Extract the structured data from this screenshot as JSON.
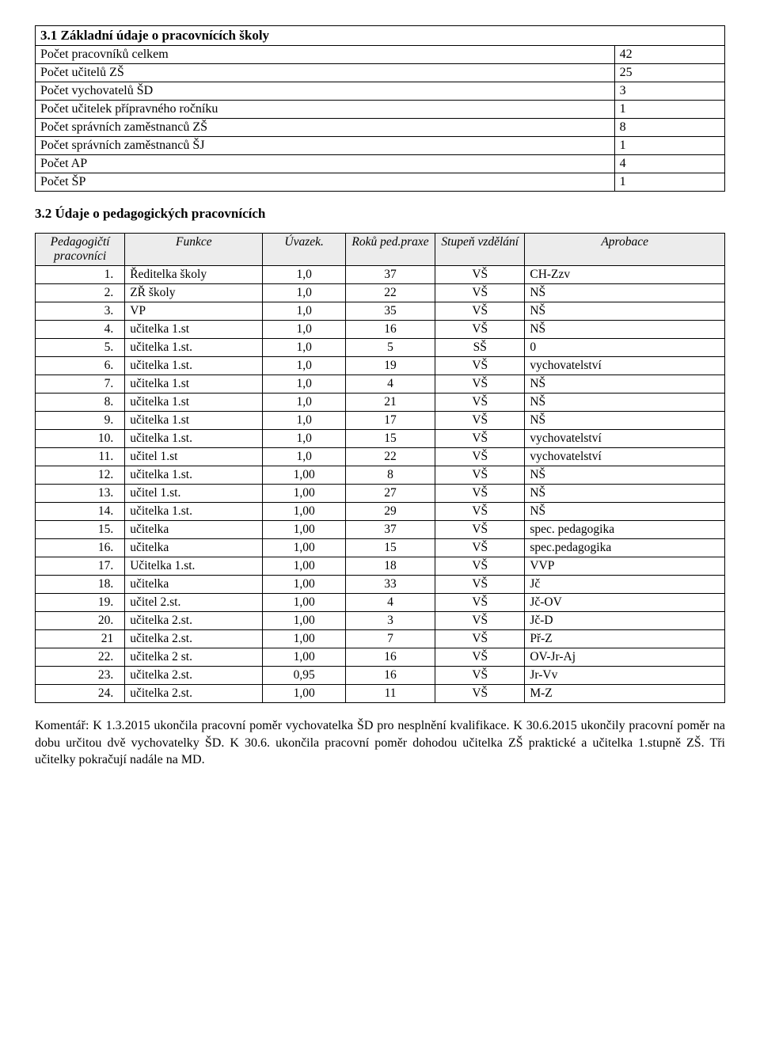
{
  "section1": {
    "title": "3.1 Základní údaje o pracovnících školy",
    "rows": [
      {
        "label": "Počet pracovníků celkem",
        "value": "42"
      },
      {
        "label": "Počet učitelů ZŠ",
        "value": "25"
      },
      {
        "label": "Počet vychovatelů ŠD",
        "value": "3"
      },
      {
        "label": "Počet učitelek přípravného ročníku",
        "value": "1"
      },
      {
        "label": "Počet správních zaměstnanců ZŠ",
        "value": "8"
      },
      {
        "label": "Počet správních zaměstnanců ŠJ",
        "value": "1"
      },
      {
        "label": "Počet AP",
        "value": "4"
      },
      {
        "label": "Počet ŠP",
        "value": "1"
      }
    ]
  },
  "section2": {
    "title": "3.2 Údaje o pedagogických pracovnících",
    "headers": {
      "c1": "Pedagogičtí pracovníci",
      "c2": "Funkce",
      "c3": "Úvazek.",
      "c4": "Roků ped.praxe",
      "c5": "Stupeň vzdělání",
      "c6": "Aprobace"
    },
    "rows": [
      {
        "n": "1.",
        "f": "Ředitelka školy",
        "u": "1,0",
        "r": "37",
        "s": "VŠ",
        "a": "CH-Zzv"
      },
      {
        "n": "2.",
        "f": "ZŘ školy",
        "u": "1,0",
        "r": "22",
        "s": "VŠ",
        "a": "NŠ"
      },
      {
        "n": "3.",
        "f": "VP",
        "u": "1,0",
        "r": "35",
        "s": "VŠ",
        "a": "NŠ"
      },
      {
        "n": "4.",
        "f": "učitelka 1.st",
        "u": "1,0",
        "r": "16",
        "s": "VŠ",
        "a": "NŠ"
      },
      {
        "n": "5.",
        "f": "učitelka 1.st.",
        "u": "1,0",
        "r": "5",
        "s": "SŠ",
        "a": "0"
      },
      {
        "n": "6.",
        "f": "učitelka 1.st.",
        "u": "1,0",
        "r": "19",
        "s": "VŠ",
        "a": "vychovatelství"
      },
      {
        "n": "7.",
        "f": "učitelka  1.st",
        "u": "1,0",
        "r": "4",
        "s": "VŠ",
        "a": "NŠ"
      },
      {
        "n": "8.",
        "f": "učitelka  1.st",
        "u": "1,0",
        "r": "21",
        "s": "VŠ",
        "a": "NŠ"
      },
      {
        "n": "9.",
        "f": "učitelka  1.st",
        "u": "1,0",
        "r": "17",
        "s": "VŠ",
        "a": "NŠ"
      },
      {
        "n": "10.",
        "f": "učitelka 1.st.",
        "u": "1,0",
        "r": "15",
        "s": "VŠ",
        "a": "vychovatelství"
      },
      {
        "n": "11.",
        "f": "učitel 1.st",
        "u": "1,0",
        "r": "22",
        "s": "VŠ",
        "a": "vychovatelství"
      },
      {
        "n": "12.",
        "f": "učitelka 1.st.",
        "u": "1,00",
        "r": "8",
        "s": "VŠ",
        "a": "NŠ"
      },
      {
        "n": "13.",
        "f": "učitel 1.st.",
        "u": "1,00",
        "r": "27",
        "s": "VŠ",
        "a": "NŠ"
      },
      {
        "n": "14.",
        "f": "učitelka 1.st.",
        "u": "1,00",
        "r": "29",
        "s": "VŠ",
        "a": "NŠ"
      },
      {
        "n": "15.",
        "f": "učitelka",
        "u": "1,00",
        "r": "37",
        "s": "VŠ",
        "a": "spec. pedagogika"
      },
      {
        "n": "16.",
        "f": "učitelka",
        "u": "1,00",
        "r": "15",
        "s": "VŠ",
        "a": "spec.pedagogika"
      },
      {
        "n": "17.",
        "f": "Učitelka 1.st.",
        "u": "1,00",
        "r": "18",
        "s": "VŠ",
        "a": "VVP"
      },
      {
        "n": "18.",
        "f": "učitelka",
        "u": "1,00",
        "r": "33",
        "s": "VŠ",
        "a": "Jč"
      },
      {
        "n": "19.",
        "f": "učitel 2.st.",
        "u": "1,00",
        "r": "4",
        "s": "VŠ",
        "a": "Jč-OV"
      },
      {
        "n": "20.",
        "f": "učitelka 2.st.",
        "u": "1,00",
        "r": "3",
        "s": "VŠ",
        "a": "Jč-D"
      },
      {
        "n": "21",
        "f": "učitelka 2.st.",
        "u": "1,00",
        "r": "7",
        "s": "VŠ",
        "a": "Př-Z"
      },
      {
        "n": "22.",
        "f": "učitelka 2 st.",
        "u": "1,00",
        "r": "16",
        "s": "VŠ",
        "a": "OV-Jr-Aj"
      },
      {
        "n": "23.",
        "f": "učitelka 2.st.",
        "u": "0,95",
        "r": "16",
        "s": "VŠ",
        "a": "Jr-Vv"
      },
      {
        "n": "24.",
        "f": "učitelka 2.st.",
        "u": "1,00",
        "r": "11",
        "s": "VŠ",
        "a": "M-Z"
      }
    ]
  },
  "comment": "Komentář: K 1.3.2015 ukončila pracovní poměr vychovatelka ŠD pro nesplnění kvalifikace. K 30.6.2015 ukončily pracovní poměr na dobu určitou dvě vychovatelky ŠD. K 30.6. ukončila pracovní poměr dohodou učitelka ZŠ praktické a učitelka 1.stupně ZŠ. Tři učitelky pokračují nadále na MD."
}
